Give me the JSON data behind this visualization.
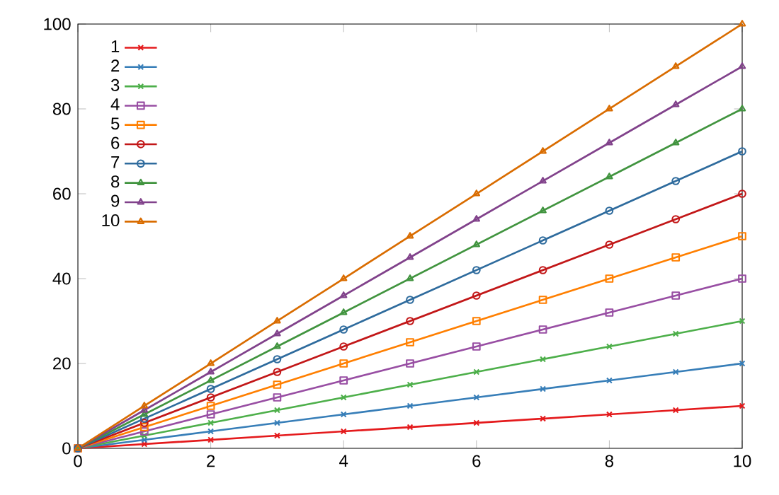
{
  "chart_data": {
    "type": "line",
    "x": [
      0,
      1,
      2,
      3,
      4,
      5,
      6,
      7,
      8,
      9,
      10
    ],
    "xlim": [
      0,
      10
    ],
    "ylim": [
      0,
      100
    ],
    "xticks": [
      0,
      2,
      4,
      6,
      8,
      10
    ],
    "yticks": [
      0,
      20,
      40,
      60,
      80,
      100
    ],
    "grid": false,
    "legend": "top left",
    "series": [
      {
        "name": "1",
        "color": "#e41a1c",
        "marker": "cross",
        "values": [
          0,
          1,
          2,
          3,
          4,
          5,
          6,
          7,
          8,
          9,
          10
        ]
      },
      {
        "name": "2",
        "color": "#377eb8",
        "marker": "cross",
        "values": [
          0,
          2,
          4,
          6,
          8,
          10,
          12,
          14,
          16,
          18,
          20
        ]
      },
      {
        "name": "3",
        "color": "#4daf4a",
        "marker": "cross",
        "values": [
          0,
          3,
          6,
          9,
          12,
          15,
          18,
          21,
          24,
          27,
          30
        ]
      },
      {
        "name": "4",
        "color": "#984ea3",
        "marker": "square",
        "values": [
          0,
          4,
          8,
          12,
          16,
          20,
          24,
          28,
          32,
          36,
          40
        ]
      },
      {
        "name": "5",
        "color": "#ff7f00",
        "marker": "square",
        "values": [
          0,
          5,
          10,
          15,
          20,
          25,
          30,
          35,
          40,
          45,
          50
        ]
      },
      {
        "name": "6",
        "color": "#c21718",
        "marker": "circle",
        "values": [
          0,
          6,
          12,
          18,
          24,
          30,
          36,
          42,
          48,
          54,
          60
        ]
      },
      {
        "name": "7",
        "color": "#2e6b9d",
        "marker": "circle",
        "values": [
          0,
          7,
          14,
          21,
          28,
          35,
          42,
          49,
          56,
          63,
          70
        ]
      },
      {
        "name": "8",
        "color": "#41943f",
        "marker": "triangle",
        "values": [
          0,
          8,
          16,
          24,
          32,
          40,
          48,
          56,
          64,
          72,
          80
        ]
      },
      {
        "name": "9",
        "color": "#81428b",
        "marker": "triangle",
        "values": [
          0,
          9,
          18,
          27,
          36,
          45,
          54,
          63,
          72,
          81,
          90
        ]
      },
      {
        "name": "10",
        "color": "#d96c00",
        "marker": "triangle",
        "values": [
          0,
          10,
          20,
          30,
          40,
          50,
          60,
          70,
          80,
          90,
          100
        ]
      }
    ]
  }
}
